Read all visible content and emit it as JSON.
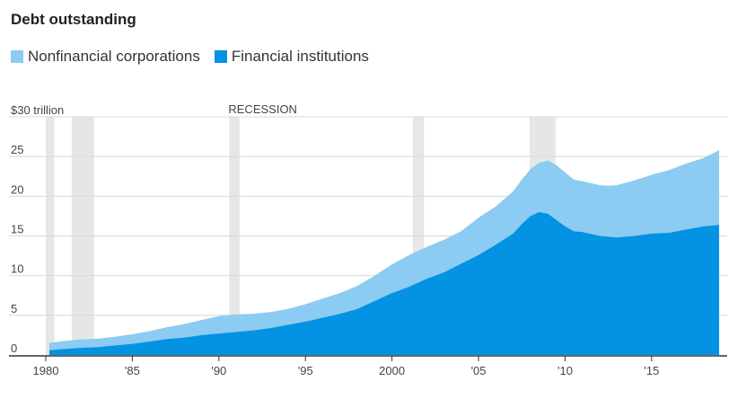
{
  "chart_data": {
    "type": "area",
    "title": "Debt outstanding",
    "xlabel": "",
    "ylabel": "",
    "stacked": true,
    "x_unit": "year",
    "xlim": [
      1980,
      2019
    ],
    "ylim": [
      0,
      30
    ],
    "y_ticks": [
      {
        "value": 30,
        "label": "$30 trillion"
      },
      {
        "value": 25,
        "label": "25"
      },
      {
        "value": 20,
        "label": "20"
      },
      {
        "value": 15,
        "label": "15"
      },
      {
        "value": 10,
        "label": "10"
      },
      {
        "value": 5,
        "label": "5"
      },
      {
        "value": 0,
        "label": "0"
      }
    ],
    "x_ticks": [
      {
        "value": 1980,
        "label": "1980"
      },
      {
        "value": 1985,
        "label": "'85"
      },
      {
        "value": 1990,
        "label": "'90"
      },
      {
        "value": 1995,
        "label": "'95"
      },
      {
        "value": 2000,
        "label": "2000"
      },
      {
        "value": 2005,
        "label": "'05"
      },
      {
        "value": 2010,
        "label": "'10"
      },
      {
        "value": 2015,
        "label": "'15"
      }
    ],
    "grid": true,
    "legend_position": "top-left",
    "colors": {
      "nonfinancial": "#8ccbf2",
      "financial": "#0492e2",
      "recession": "#e5e6e8",
      "grid": "#d8d8d8",
      "axis": "#333333"
    },
    "x": [
      1980.2,
      1981,
      1982,
      1983,
      1984,
      1985,
      1986,
      1987,
      1988,
      1989,
      1990,
      1991,
      1992,
      1993,
      1994,
      1995,
      1996,
      1997,
      1998,
      1999,
      2000,
      2001,
      2002,
      2003,
      2004,
      2005,
      2006,
      2007,
      2007.5,
      2008,
      2008.5,
      2009,
      2009.5,
      2010,
      2010.5,
      2011,
      2012,
      2012.5,
      2013,
      2014,
      2015,
      2016,
      2017,
      2018,
      2018.9
    ],
    "series": [
      {
        "name": "Financial institutions",
        "values": [
          0.6,
          0.75,
          0.9,
          1.0,
          1.2,
          1.4,
          1.7,
          2.0,
          2.2,
          2.5,
          2.7,
          2.9,
          3.1,
          3.4,
          3.8,
          4.2,
          4.7,
          5.2,
          5.8,
          6.8,
          7.8,
          8.6,
          9.6,
          10.4,
          11.5,
          12.6,
          13.9,
          15.3,
          16.5,
          17.5,
          18.0,
          17.8,
          17.0,
          16.2,
          15.6,
          15.5,
          15.0,
          14.9,
          14.8,
          15.0,
          15.3,
          15.4,
          15.8,
          16.2,
          16.4
        ]
      },
      {
        "name": "Nonfinancial corporations",
        "values": [
          0.9,
          1.0,
          1.05,
          1.05,
          1.1,
          1.2,
          1.3,
          1.5,
          1.7,
          1.9,
          2.2,
          2.2,
          2.1,
          2.0,
          2.0,
          2.2,
          2.4,
          2.6,
          2.9,
          3.2,
          3.6,
          4.0,
          4.0,
          4.1,
          4.1,
          4.7,
          4.8,
          5.3,
          5.6,
          5.9,
          6.2,
          6.7,
          6.9,
          6.8,
          6.5,
          6.4,
          6.4,
          6.4,
          6.6,
          7.0,
          7.4,
          7.9,
          8.3,
          8.6,
          9.4
        ]
      }
    ],
    "recessions": [
      {
        "start": 1980.0,
        "end": 1980.5
      },
      {
        "start": 1981.5,
        "end": 1982.8
      },
      {
        "start": 1990.6,
        "end": 1991.2
      },
      {
        "start": 2001.2,
        "end": 2001.85
      },
      {
        "start": 2007.95,
        "end": 2009.45
      }
    ],
    "annotations": [
      {
        "text": "RECESSION",
        "x": 1990.6
      }
    ]
  },
  "legend": {
    "nonfinancial_label": "Nonfinancial corporations",
    "financial_label": "Financial institutions"
  }
}
